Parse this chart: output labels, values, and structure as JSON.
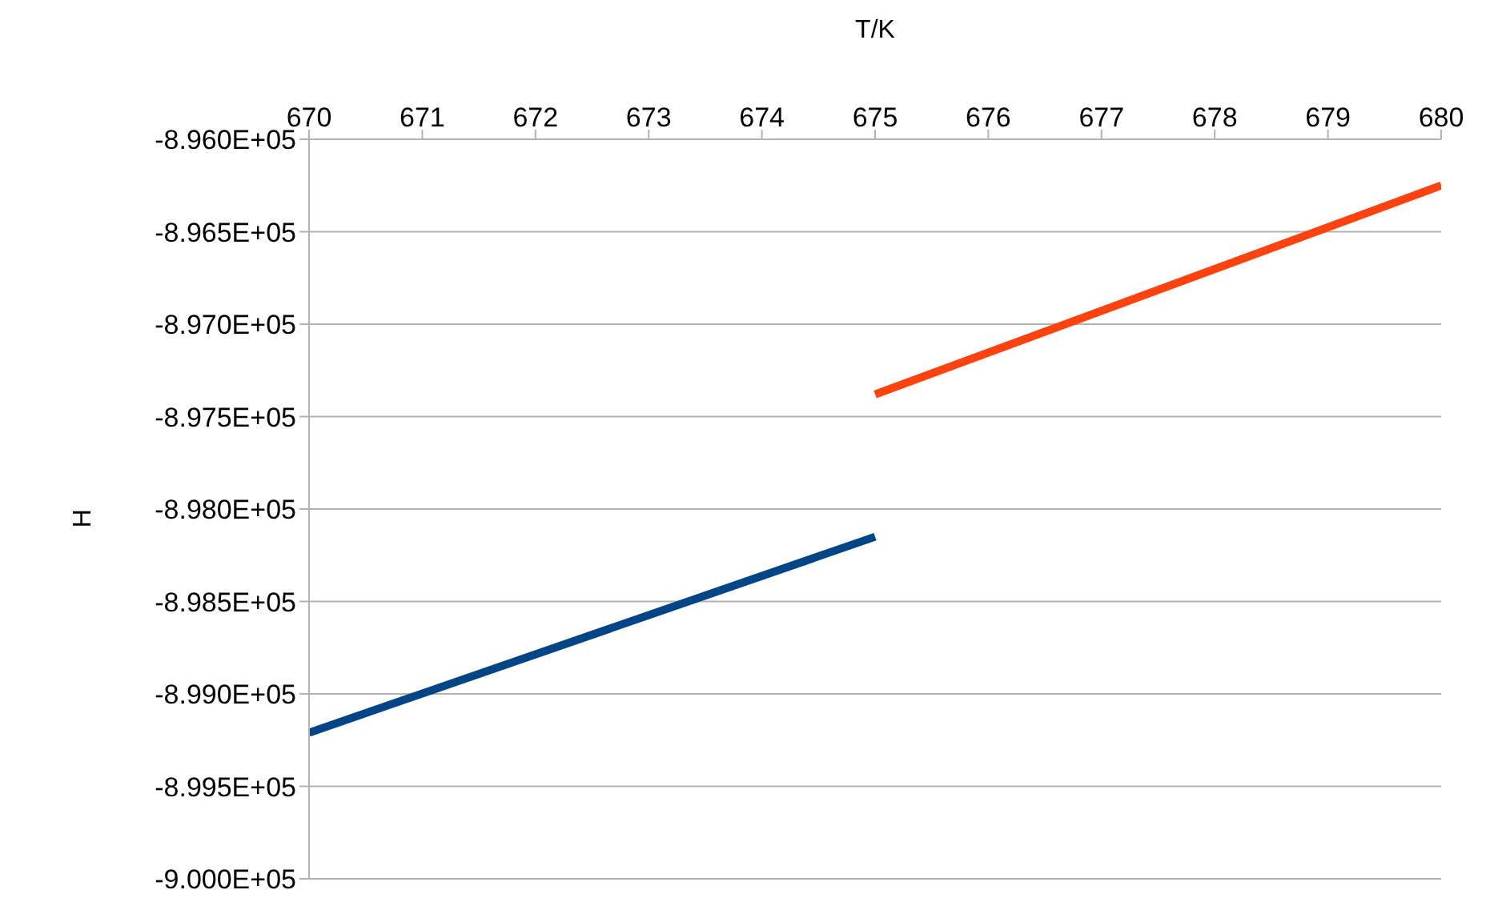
{
  "chart_data": {
    "type": "line",
    "xlabel": "T/K",
    "ylabel": "H",
    "xlim": [
      670,
      680
    ],
    "xticks": [
      670,
      671,
      672,
      673,
      674,
      675,
      676,
      677,
      678,
      679,
      680
    ],
    "ylim": [
      -900000,
      -896000
    ],
    "yticks": [
      {
        "value": -900000,
        "label": "-9.000E+05"
      },
      {
        "value": -899500,
        "label": "-8.995E+05"
      },
      {
        "value": -899000,
        "label": "-8.990E+05"
      },
      {
        "value": -898500,
        "label": "-8.985E+05"
      },
      {
        "value": -898000,
        "label": "-8.980E+05"
      },
      {
        "value": -897500,
        "label": "-8.975E+05"
      },
      {
        "value": -897000,
        "label": "-8.970E+05"
      },
      {
        "value": -896500,
        "label": "-8.965E+05"
      },
      {
        "value": -896000,
        "label": "-8.960E+05"
      }
    ],
    "grid": "y",
    "legend": false,
    "marker": "none",
    "line_style": "solid",
    "series": [
      {
        "color": "#004586",
        "x": [
          670,
          675
        ],
        "values": [
          -899210,
          -898150
        ]
      },
      {
        "color": "#ff420e",
        "x": [
          675,
          680
        ],
        "values": [
          -897380,
          -896250
        ]
      }
    ]
  }
}
